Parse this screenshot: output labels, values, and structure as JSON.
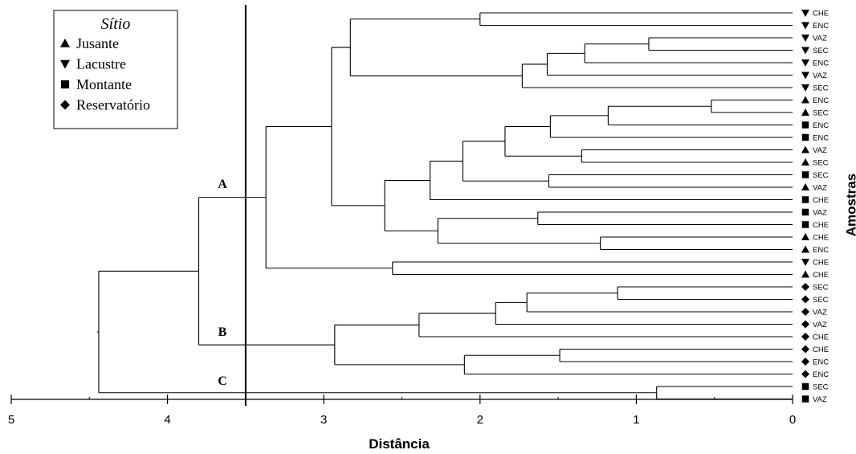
{
  "chart_data": {
    "type": "dendrogram",
    "xlabel": "Distância",
    "ylabel": "Amostras",
    "xlim": [
      5,
      0
    ],
    "x_ticks": [
      "5",
      "4",
      "3",
      "2",
      "1",
      "0"
    ],
    "cut_line": 3.5,
    "cluster_labels": [
      {
        "label": "A",
        "distance": 3.8
      },
      {
        "label": "B",
        "distance": 3.8
      },
      {
        "label": "C",
        "distance": 4.44
      }
    ],
    "legend": {
      "title": "Sítio",
      "placement": "top-left",
      "entries": [
        {
          "label": "Jusante",
          "marker": "triangle-up"
        },
        {
          "label": "Lacustre",
          "marker": "triangle-down"
        },
        {
          "label": "Montante",
          "marker": "square"
        },
        {
          "label": "Reservatório",
          "marker": "diamond"
        }
      ]
    },
    "leaves": [
      {
        "label": "CHE",
        "marker": "triangle-down"
      },
      {
        "label": "ENC",
        "marker": "triangle-down"
      },
      {
        "label": "VAZ",
        "marker": "triangle-down"
      },
      {
        "label": "SEC",
        "marker": "triangle-down"
      },
      {
        "label": "ENC",
        "marker": "triangle-down"
      },
      {
        "label": "VAZ",
        "marker": "triangle-down"
      },
      {
        "label": "SEC",
        "marker": "triangle-down"
      },
      {
        "label": "ENC",
        "marker": "triangle-up"
      },
      {
        "label": "SEC",
        "marker": "triangle-up"
      },
      {
        "label": "ENC",
        "marker": "square"
      },
      {
        "label": "ENC",
        "marker": "square"
      },
      {
        "label": "VAZ",
        "marker": "triangle-up"
      },
      {
        "label": "SEC",
        "marker": "triangle-up"
      },
      {
        "label": "SEC",
        "marker": "square"
      },
      {
        "label": "VAZ",
        "marker": "triangle-up"
      },
      {
        "label": "CHE",
        "marker": "square"
      },
      {
        "label": "VAZ",
        "marker": "square"
      },
      {
        "label": "CHE",
        "marker": "square"
      },
      {
        "label": "CHE",
        "marker": "triangle-up"
      },
      {
        "label": "ENC",
        "marker": "triangle-up"
      },
      {
        "label": "CHE",
        "marker": "triangle-down"
      },
      {
        "label": "CHE",
        "marker": "triangle-up"
      },
      {
        "label": "SEC",
        "marker": "diamond"
      },
      {
        "label": "SEC",
        "marker": "diamond"
      },
      {
        "label": "VAZ",
        "marker": "diamond"
      },
      {
        "label": "VAZ",
        "marker": "diamond"
      },
      {
        "label": "CHE",
        "marker": "diamond"
      },
      {
        "label": "CHE",
        "marker": "diamond"
      },
      {
        "label": "ENC",
        "marker": "diamond"
      },
      {
        "label": "ENC",
        "marker": "diamond"
      },
      {
        "label": "SEC",
        "marker": "square"
      },
      {
        "label": "VAZ",
        "marker": "square"
      }
    ],
    "merges": [
      {
        "a": 0,
        "b": 1,
        "distance": 2.0
      },
      {
        "a": 2,
        "b": 3,
        "distance": 0.92
      },
      {
        "a": "m1",
        "b": 4,
        "distance": 1.33
      },
      {
        "a": "m2",
        "b": 5,
        "distance": 1.57
      },
      {
        "a": "m3",
        "b": 6,
        "distance": 1.73
      },
      {
        "a": "m0",
        "b": "m4",
        "distance": 2.83
      },
      {
        "a": 7,
        "b": 8,
        "distance": 0.52
      },
      {
        "a": "m6",
        "b": 9,
        "distance": 1.18
      },
      {
        "a": "m7",
        "b": 10,
        "distance": 1.55
      },
      {
        "a": 11,
        "b": 12,
        "distance": 1.35
      },
      {
        "a": "m8",
        "b": "m9",
        "distance": 1.84
      },
      {
        "a": 13,
        "b": 14,
        "distance": 1.56
      },
      {
        "a": "m10",
        "b": "m11",
        "distance": 2.11
      },
      {
        "a": "m12",
        "b": 15,
        "distance": 2.32
      },
      {
        "a": 16,
        "b": 17,
        "distance": 1.63
      },
      {
        "a": 18,
        "b": 19,
        "distance": 1.23
      },
      {
        "a": "m14",
        "b": "m15",
        "distance": 2.27
      },
      {
        "a": "m13",
        "b": "m16",
        "distance": 2.61
      },
      {
        "a": "m5",
        "b": "m17",
        "distance": 2.95
      },
      {
        "a": 20,
        "b": 21,
        "distance": 2.56
      },
      {
        "a": "m18",
        "b": "m19",
        "distance": 3.37
      },
      {
        "a": 22,
        "b": 23,
        "distance": 1.12
      },
      {
        "a": "m21",
        "b": 24,
        "distance": 1.7
      },
      {
        "a": "m22",
        "b": 25,
        "distance": 1.9
      },
      {
        "a": "m23",
        "b": 26,
        "distance": 2.39
      },
      {
        "a": 27,
        "b": 28,
        "distance": 1.49
      },
      {
        "a": "m25",
        "b": 29,
        "distance": 2.1
      },
      {
        "a": "m24",
        "b": "m26",
        "distance": 2.93
      },
      {
        "a": "m20",
        "b": "m27",
        "distance": 3.8
      },
      {
        "a": 30,
        "b": 31,
        "distance": 0.87
      },
      {
        "a": "m28",
        "b": "m29",
        "distance": 4.44
      }
    ]
  }
}
